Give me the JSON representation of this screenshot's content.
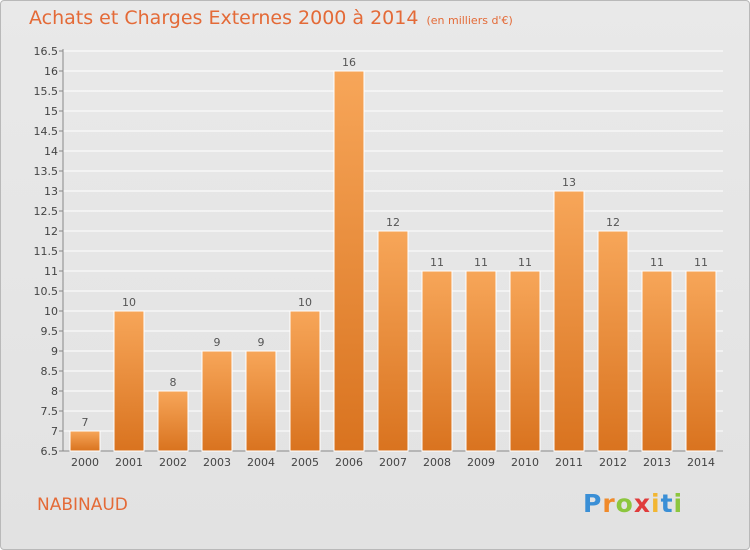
{
  "header": {
    "title": "Achats et Charges Externes 2000 à 2014",
    "unit": "(en milliers d'€)"
  },
  "commune": "NABINAUD",
  "logo": {
    "letters": [
      "P",
      "r",
      "o",
      "x",
      "i",
      "t",
      "i"
    ],
    "colors": [
      "#3a8fd6",
      "#f08a2a",
      "#8cc63e",
      "#e03b3b",
      "#f2b632",
      "#3a8fd6",
      "#8cc63e"
    ]
  },
  "colors": {
    "title": "#e46a37",
    "bar_light": "#f7a659",
    "bar_dark": "#d9731f",
    "grid": "#ffffff"
  },
  "chart_data": {
    "type": "bar",
    "title": "Achats et Charges Externes 2000 à 2014",
    "categories": [
      "2000",
      "2001",
      "2002",
      "2003",
      "2004",
      "2005",
      "2006",
      "2007",
      "2008",
      "2009",
      "2010",
      "2011",
      "2012",
      "2013",
      "2014"
    ],
    "values": [
      7,
      10,
      8,
      9,
      9,
      10,
      16,
      12,
      11,
      11,
      11,
      13,
      12,
      11,
      11
    ],
    "labels": [
      "7",
      "10",
      "8",
      "9",
      "9",
      "10",
      "16",
      "12",
      "11",
      "11",
      "11",
      "13",
      "12",
      "11",
      "11"
    ],
    "yticks": [
      "6.5",
      "7",
      "7.5",
      "8",
      "8.5",
      "9",
      "9.5",
      "10",
      "10.5",
      "11",
      "11.5",
      "12",
      "12.5",
      "13",
      "13.5",
      "14",
      "14.5",
      "15",
      "15.5",
      "16",
      "16.5"
    ],
    "ylim": [
      6.5,
      16.5
    ],
    "grid": true
  }
}
